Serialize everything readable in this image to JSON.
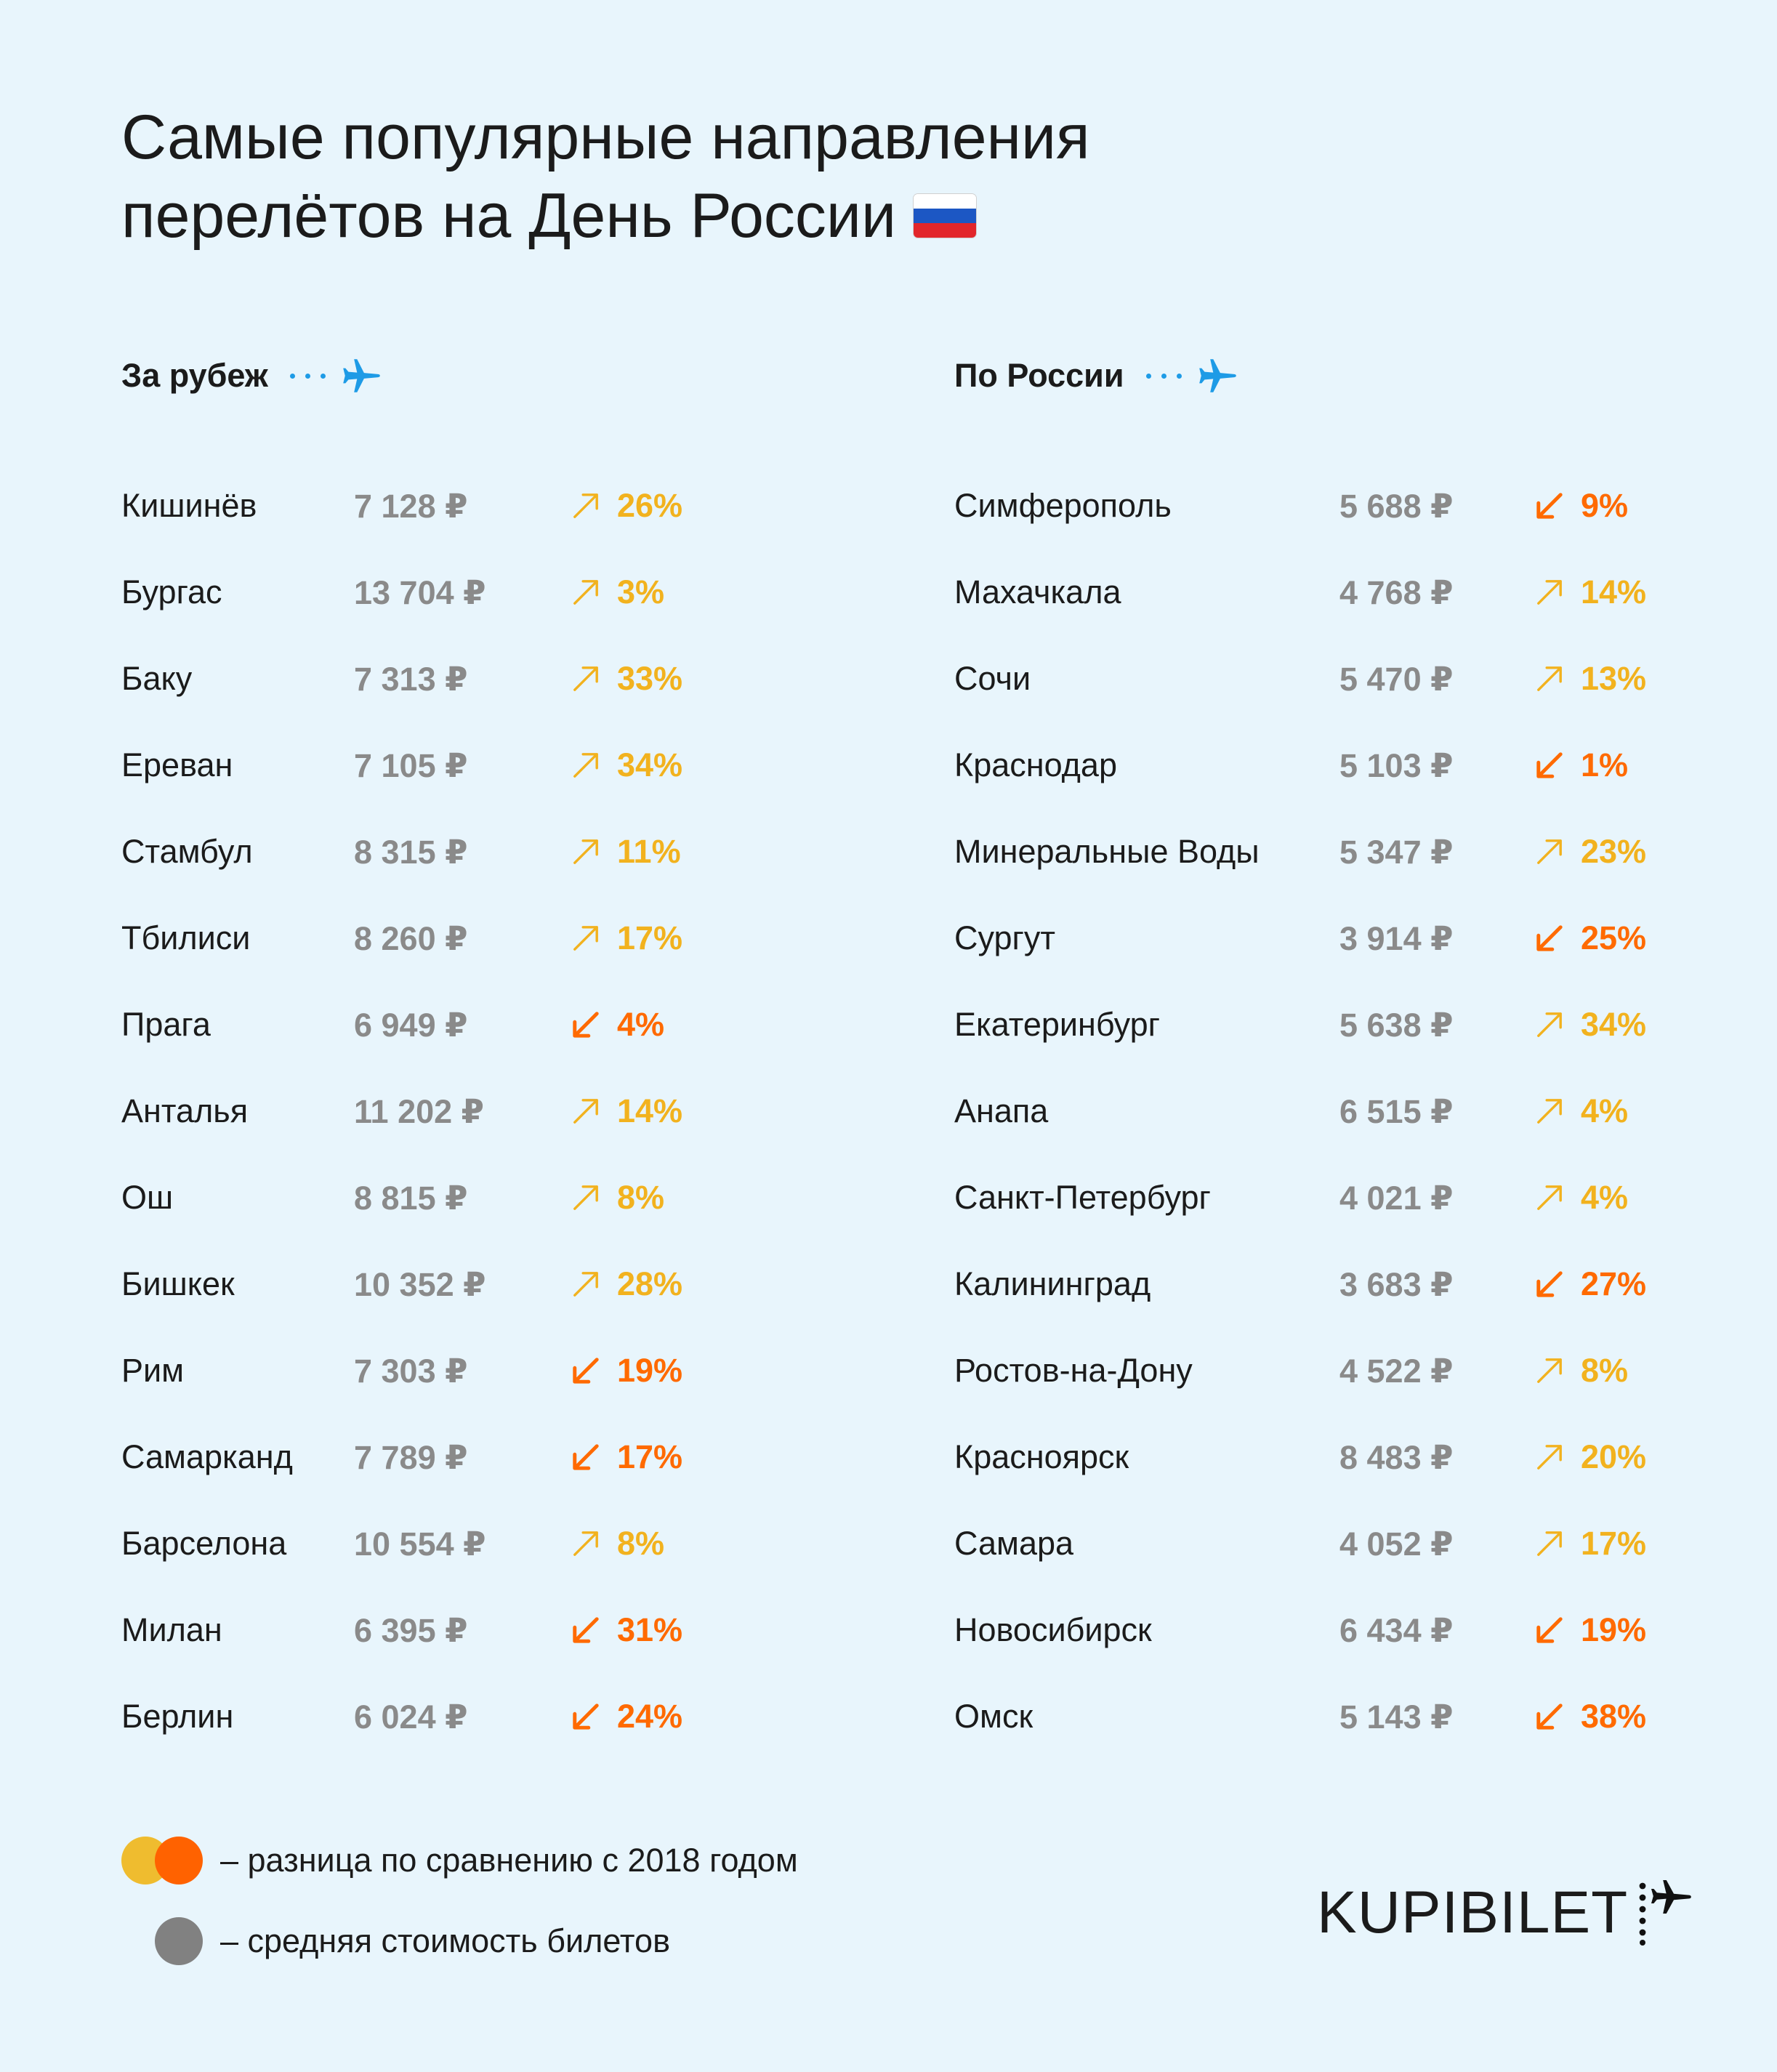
{
  "title_line1": "Самые популярные направления",
  "title_line2": "перелётов на День России",
  "abroad": {
    "heading": "За рубеж",
    "rows": [
      {
        "city": "Кишинёв",
        "price": "7 128 ₽",
        "change": "26%",
        "dir": "up"
      },
      {
        "city": "Бургас",
        "price": "13 704 ₽",
        "change": "3%",
        "dir": "up"
      },
      {
        "city": "Баку",
        "price": "7 313 ₽",
        "change": "33%",
        "dir": "up"
      },
      {
        "city": "Ереван",
        "price": "7 105 ₽",
        "change": "34%",
        "dir": "up"
      },
      {
        "city": "Стамбул",
        "price": "8 315 ₽",
        "change": "11%",
        "dir": "up"
      },
      {
        "city": "Тбилиси",
        "price": "8 260 ₽",
        "change": "17%",
        "dir": "up"
      },
      {
        "city": "Прага",
        "price": "6 949 ₽",
        "change": "4%",
        "dir": "down"
      },
      {
        "city": "Анталья",
        "price": "11 202 ₽",
        "change": "14%",
        "dir": "up"
      },
      {
        "city": "Ош",
        "price": "8 815 ₽",
        "change": "8%",
        "dir": "up"
      },
      {
        "city": "Бишкек",
        "price": "10 352 ₽",
        "change": "28%",
        "dir": "up"
      },
      {
        "city": "Рим",
        "price": "7 303 ₽",
        "change": "19%",
        "dir": "down"
      },
      {
        "city": "Самарканд",
        "price": "7 789 ₽",
        "change": "17%",
        "dir": "down"
      },
      {
        "city": "Барселона",
        "price": "10 554 ₽",
        "change": "8%",
        "dir": "up"
      },
      {
        "city": "Милан",
        "price": "6 395 ₽",
        "change": "31%",
        "dir": "down"
      },
      {
        "city": "Берлин",
        "price": "6 024 ₽",
        "change": "24%",
        "dir": "down"
      }
    ]
  },
  "russia": {
    "heading": "По России",
    "rows": [
      {
        "city": "Симферополь",
        "price": "5 688 ₽",
        "change": "9%",
        "dir": "down"
      },
      {
        "city": "Махачкала",
        "price": "4 768 ₽",
        "change": "14%",
        "dir": "up"
      },
      {
        "city": "Сочи",
        "price": "5 470 ₽",
        "change": "13%",
        "dir": "up"
      },
      {
        "city": "Краснодар",
        "price": "5 103 ₽",
        "change": "1%",
        "dir": "down"
      },
      {
        "city": "Минеральные Воды",
        "price": "5 347 ₽",
        "change": "23%",
        "dir": "up"
      },
      {
        "city": "Сургут",
        "price": "3 914 ₽",
        "change": "25%",
        "dir": "down"
      },
      {
        "city": "Екатеринбург",
        "price": "5 638 ₽",
        "change": "34%",
        "dir": "up"
      },
      {
        "city": "Анапа",
        "price": "6 515 ₽",
        "change": "4%",
        "dir": "up"
      },
      {
        "city": "Санкт-Петербург",
        "price": "4 021 ₽",
        "change": "4%",
        "dir": "up"
      },
      {
        "city": "Калининград",
        "price": "3 683 ₽",
        "change": "27%",
        "dir": "down"
      },
      {
        "city": "Ростов-на-Дону",
        "price": "4 522 ₽",
        "change": "8%",
        "dir": "up"
      },
      {
        "city": "Красноярск",
        "price": "8 483 ₽",
        "change": "20%",
        "dir": "up"
      },
      {
        "city": "Самара",
        "price": "4 052 ₽",
        "change": "17%",
        "dir": "up"
      },
      {
        "city": "Новосибирск",
        "price": "6 434 ₽",
        "change": "19%",
        "dir": "down"
      },
      {
        "city": "Омск",
        "price": "5 143 ₽",
        "change": "38%",
        "dir": "down"
      }
    ]
  },
  "legend": {
    "change_text": "– разница по сравнению с 2018 годом",
    "price_text": "– средняя стоимость билетов"
  },
  "logo_text": "KUPIBILET",
  "colors": {
    "background": "#e8f5fc",
    "up": "#f2b21e",
    "down": "#ff6a00",
    "price": "#8a8a8a",
    "accent": "#1e9be6"
  },
  "icons": {
    "flag": "russia-flag-icon",
    "plane": "plane-icon",
    "up": "arrow-up-right-icon",
    "down": "arrow-down-left-icon"
  }
}
